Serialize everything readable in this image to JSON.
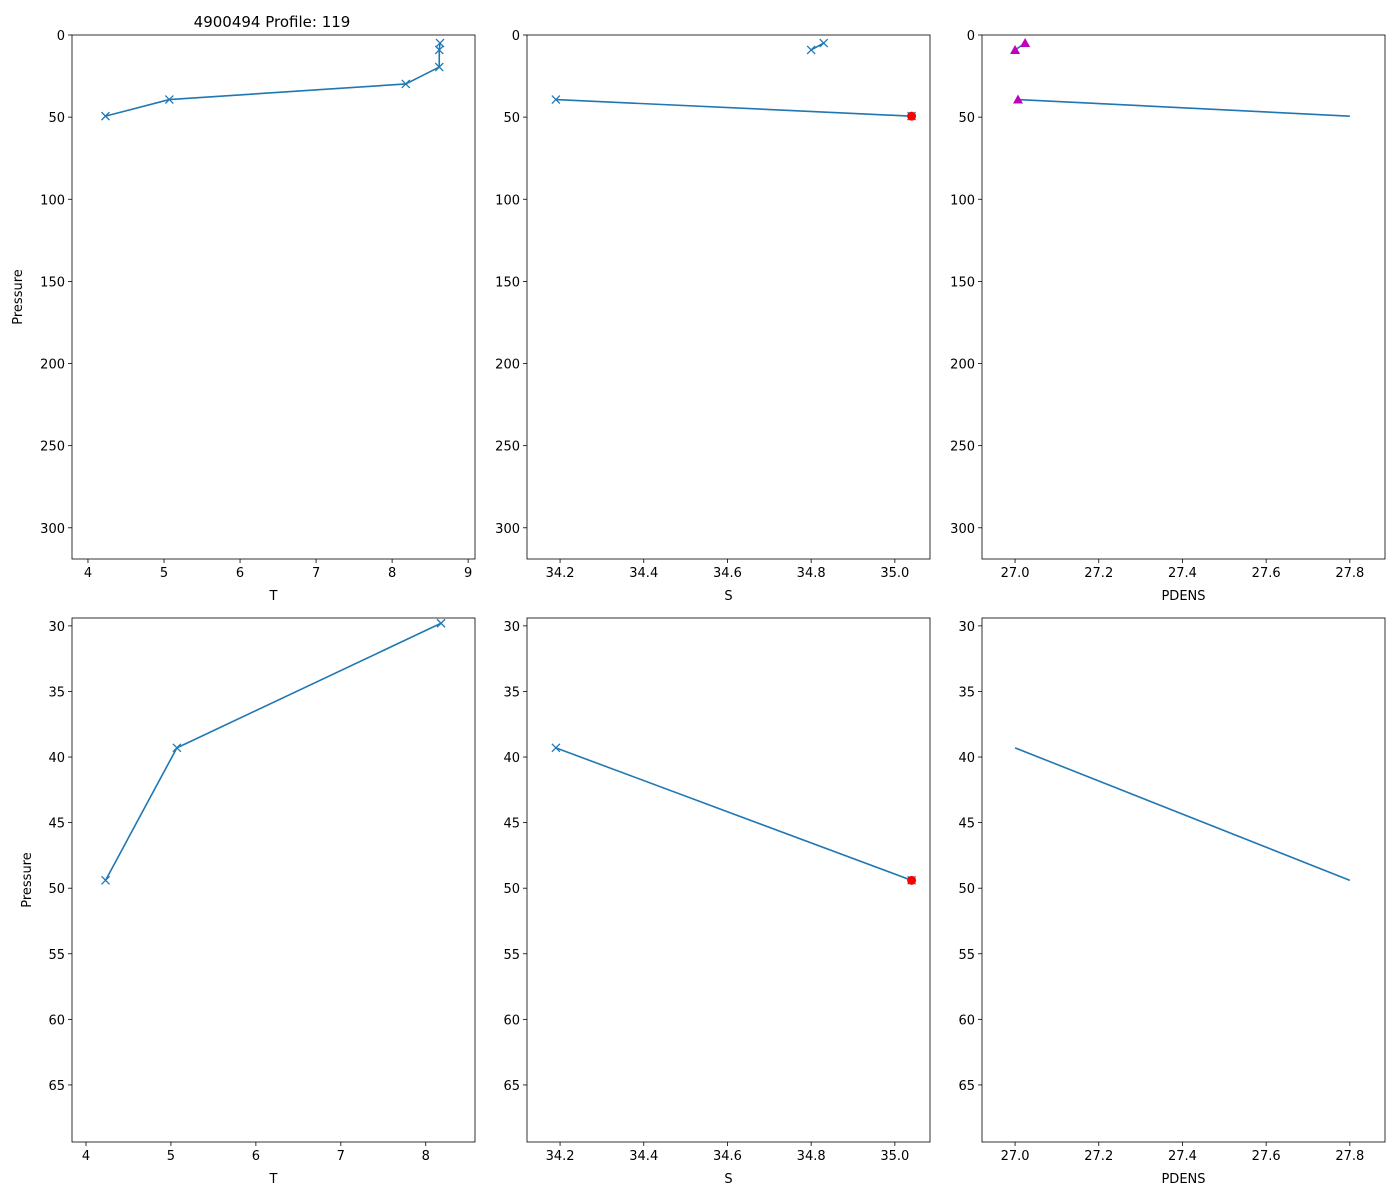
{
  "title": "4900494 Profile: 119",
  "chart_data": [
    {
      "type": "line",
      "title": "4900494 Profile: 119",
      "xlabel": "T",
      "ylabel": "Pressure",
      "xlim": [
        3.79,
        9.09
      ],
      "ylim": [
        319,
        0
      ],
      "xticks": [
        4,
        5,
        6,
        7,
        8,
        9
      ],
      "yticks": [
        0,
        50,
        100,
        150,
        200,
        250,
        300
      ],
      "series": [
        {
          "name": "T",
          "color": "#1f77b4",
          "line": true,
          "marker": "x",
          "x": [
            8.63,
            8.62,
            8.62,
            8.18,
            5.07,
            4.23
          ],
          "y": [
            4.9,
            9.1,
            19.5,
            29.8,
            39.3,
            49.4
          ]
        }
      ]
    },
    {
      "type": "line",
      "xlabel": "S",
      "ylabel": "",
      "xlim": [
        34.121,
        35.084
      ],
      "ylim": [
        319,
        0
      ],
      "xticks": [
        34.2,
        34.4,
        34.6,
        34.8,
        35.0
      ],
      "yticks": [
        0,
        50,
        100,
        150,
        200,
        250,
        300
      ],
      "series": [
        {
          "name": "S",
          "color": "#1f77b4",
          "line": true,
          "marker": "x",
          "x": [
            34.83,
            34.8,
            null,
            null,
            34.19,
            35.04
          ],
          "y": [
            4.9,
            9.1,
            19.5,
            29.8,
            39.3,
            49.4
          ]
        },
        {
          "name": "S flagged",
          "color": "#ff0000",
          "line": false,
          "marker": "o",
          "x": [
            35.04
          ],
          "y": [
            49.4
          ]
        }
      ]
    },
    {
      "type": "line",
      "xlabel": "PDENS",
      "ylabel": "",
      "xlim": [
        26.921,
        27.884
      ],
      "ylim": [
        319,
        0
      ],
      "xticks": [
        27.0,
        27.2,
        27.4,
        27.6,
        27.8
      ],
      "yticks": [
        0,
        50,
        100,
        150,
        200,
        250,
        300
      ],
      "series": [
        {
          "name": "PDENS",
          "color": "#1f77b4",
          "line": true,
          "marker": "",
          "x": [
            27.024,
            27.0,
            null,
            null,
            27.007,
            27.8
          ],
          "y": [
            4.9,
            9.1,
            19.5,
            29.8,
            39.3,
            49.4
          ]
        },
        {
          "name": "PDENS flagged",
          "color": "#bf00bf",
          "line": false,
          "marker": "^",
          "x": [
            27.024,
            27.0,
            27.007
          ],
          "y": [
            4.9,
            9.1,
            39.3
          ]
        }
      ]
    },
    {
      "type": "line",
      "xlabel": "T",
      "ylabel": "Pressure",
      "xlim": [
        3.835,
        8.58
      ],
      "ylim": [
        69.35,
        29.4
      ],
      "xticks": [
        4,
        5,
        6,
        7,
        8
      ],
      "yticks": [
        30,
        35,
        40,
        45,
        50,
        55,
        60,
        65
      ],
      "series": [
        {
          "name": "T",
          "color": "#1f77b4",
          "line": true,
          "marker": "x",
          "x": [
            8.18,
            5.07,
            4.23
          ],
          "y": [
            29.8,
            39.3,
            49.4
          ]
        }
      ]
    },
    {
      "type": "line",
      "xlabel": "S",
      "ylabel": "",
      "xlim": [
        34.121,
        35.084
      ],
      "ylim": [
        69.35,
        29.4
      ],
      "xticks": [
        34.2,
        34.4,
        34.6,
        34.8,
        35.0
      ],
      "yticks": [
        30,
        35,
        40,
        45,
        50,
        55,
        60,
        65
      ],
      "series": [
        {
          "name": "S",
          "color": "#1f77b4",
          "line": true,
          "marker": "x",
          "x": [
            34.19,
            35.04
          ],
          "y": [
            39.3,
            49.4
          ]
        },
        {
          "name": "S flagged",
          "color": "#ff0000",
          "line": false,
          "marker": "o",
          "x": [
            35.04
          ],
          "y": [
            49.4
          ]
        }
      ]
    },
    {
      "type": "line",
      "xlabel": "PDENS",
      "ylabel": "",
      "xlim": [
        26.921,
        27.884
      ],
      "ylim": [
        69.35,
        29.4
      ],
      "xticks": [
        27.0,
        27.2,
        27.4,
        27.6,
        27.8
      ],
      "yticks": [
        30,
        35,
        40,
        45,
        50,
        55,
        60,
        65
      ],
      "series": [
        {
          "name": "PDENS",
          "color": "#1f77b4",
          "line": true,
          "marker": "",
          "x": [
            27.0,
            27.8
          ],
          "y": [
            39.3,
            49.4
          ]
        }
      ]
    }
  ]
}
